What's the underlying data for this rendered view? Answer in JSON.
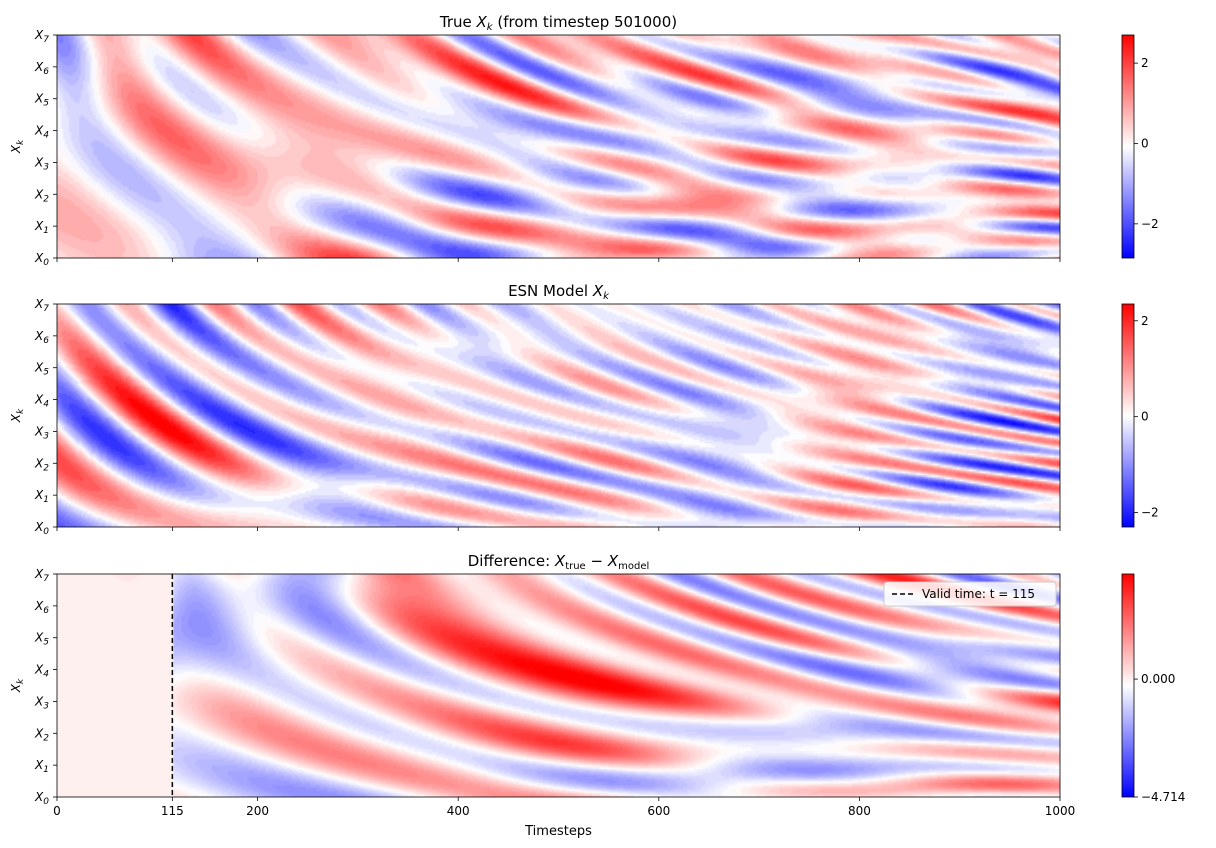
{
  "chart_data": [
    {
      "type": "heatmap",
      "title_prefix": "True ",
      "title_var": "X",
      "title_sub": "k",
      "title_suffix": " (from timestep 501000)",
      "ylabel_var": "X",
      "ylabel_sub": "k",
      "xlim": [
        0,
        1000
      ],
      "ylim": [
        0,
        7
      ],
      "xticks": [
        0,
        115,
        200,
        400,
        600,
        800,
        1000
      ],
      "xtick_labels_shown": false,
      "ytick_labels": [
        "X0",
        "X1",
        "X2",
        "X3",
        "X4",
        "X5",
        "X6",
        "X7"
      ],
      "colormap": "bwr",
      "color_low": "#0000ff",
      "color_mid": "#ffffff",
      "color_high": "#ff0000",
      "vmin": -2.85,
      "vmax": 2.7,
      "colorbar_ticks": [
        -2,
        0,
        2
      ],
      "colorbar_labels": [
        "−2",
        "0",
        "2"
      ],
      "amplitude": 1.0,
      "seed": 1
    },
    {
      "type": "heatmap",
      "title_prefix": "ESN Model ",
      "title_var": "X",
      "title_sub": "k",
      "title_suffix": "",
      "ylabel_var": "X",
      "ylabel_sub": "k",
      "xlim": [
        0,
        1000
      ],
      "ylim": [
        0,
        7
      ],
      "xticks": [
        0,
        115,
        200,
        400,
        600,
        800,
        1000
      ],
      "xtick_labels_shown": false,
      "ytick_labels": [
        "X0",
        "X1",
        "X2",
        "X3",
        "X4",
        "X5",
        "X6",
        "X7"
      ],
      "colormap": "bwr",
      "color_low": "#0000ff",
      "color_mid": "#ffffff",
      "color_high": "#ff0000",
      "vmin": -2.3,
      "vmax": 2.35,
      "colorbar_ticks": [
        -2,
        0,
        2
      ],
      "colorbar_labels": [
        "−2",
        "0",
        "2"
      ],
      "amplitude": 0.95,
      "seed": 2
    },
    {
      "type": "heatmap",
      "title_prefix": "Difference: ",
      "title_var": "X",
      "title_sub": "true",
      "title_mid": " − ",
      "title_var2": "X",
      "title_sub2": "model",
      "title_suffix": "",
      "ylabel_var": "X",
      "ylabel_sub": "k",
      "xlim": [
        0,
        1000
      ],
      "ylim": [
        0,
        7
      ],
      "xlabel": "Timesteps",
      "xticks": [
        0,
        115,
        200,
        400,
        600,
        800,
        1000
      ],
      "xtick_labels": [
        "0",
        "115",
        "200",
        "400",
        "600",
        "800",
        "1000"
      ],
      "xtick_labels_shown": true,
      "ytick_labels": [
        "X0",
        "X1",
        "X2",
        "X3",
        "X4",
        "X5",
        "X6",
        "X7"
      ],
      "colormap": "bwr",
      "color_low": "#0000ff",
      "color_mid": "#ffffff",
      "color_high": "#ff0000",
      "vmin": -4.714,
      "vmax": 4.2,
      "colorbar_ticks": [
        -4.714,
        0.0
      ],
      "colorbar_labels": [
        "−4.714",
        "0.000"
      ],
      "amplitude": 1.6,
      "seed": 3,
      "valid_time": 115,
      "legend": {
        "label": "Valid time: t = 115",
        "placement": "top-right",
        "linestyle": "dashed",
        "color": "#000000"
      }
    }
  ]
}
